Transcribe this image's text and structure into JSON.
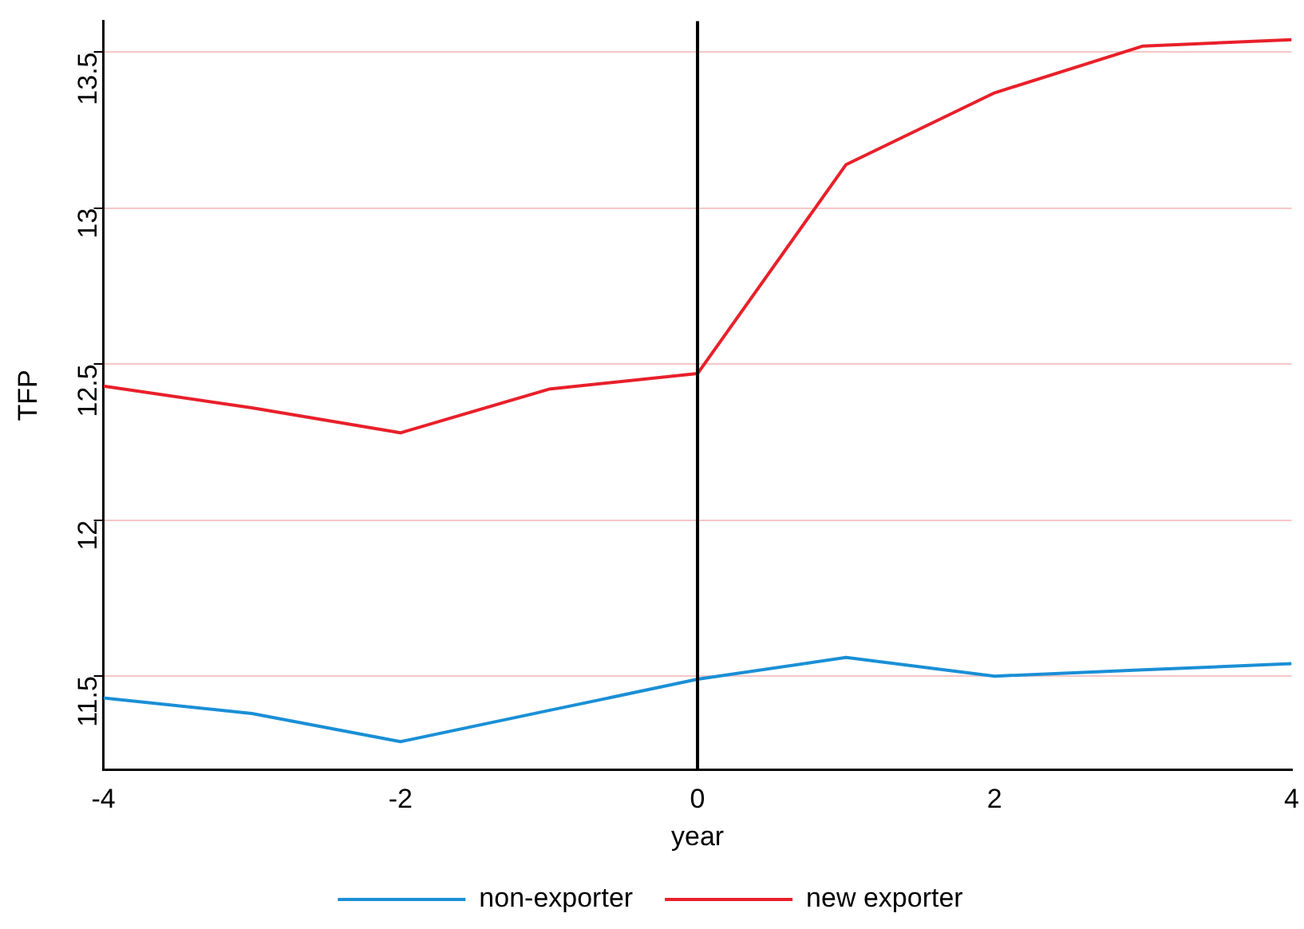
{
  "chart_data": {
    "type": "line",
    "xlabel": "year",
    "ylabel": "TFP",
    "x": [
      -4,
      -3,
      -2,
      -1,
      0,
      1,
      2,
      3,
      4
    ],
    "series": [
      {
        "name": "non-exporter",
        "color": "#1a8fd6",
        "values": [
          11.43,
          11.38,
          11.29,
          11.39,
          11.49,
          11.56,
          11.5,
          11.52,
          11.54
        ]
      },
      {
        "name": "new exporter",
        "color": "#e8202a",
        "values": [
          12.43,
          12.36,
          12.28,
          12.42,
          12.47,
          13.14,
          13.37,
          13.52,
          13.54
        ]
      }
    ],
    "xlim": [
      -4,
      4
    ],
    "xticks": [
      -4,
      -2,
      0,
      2,
      4
    ],
    "ylim": [
      11.2,
      13.6
    ],
    "yticks": [
      11.5,
      12,
      12.5,
      13,
      13.5
    ],
    "grid": "y",
    "legend": "bottom",
    "marker": "none",
    "line_style": "solid",
    "ref_lines": [
      {
        "axis": "x",
        "value": 0,
        "color": "#000000"
      }
    ]
  }
}
